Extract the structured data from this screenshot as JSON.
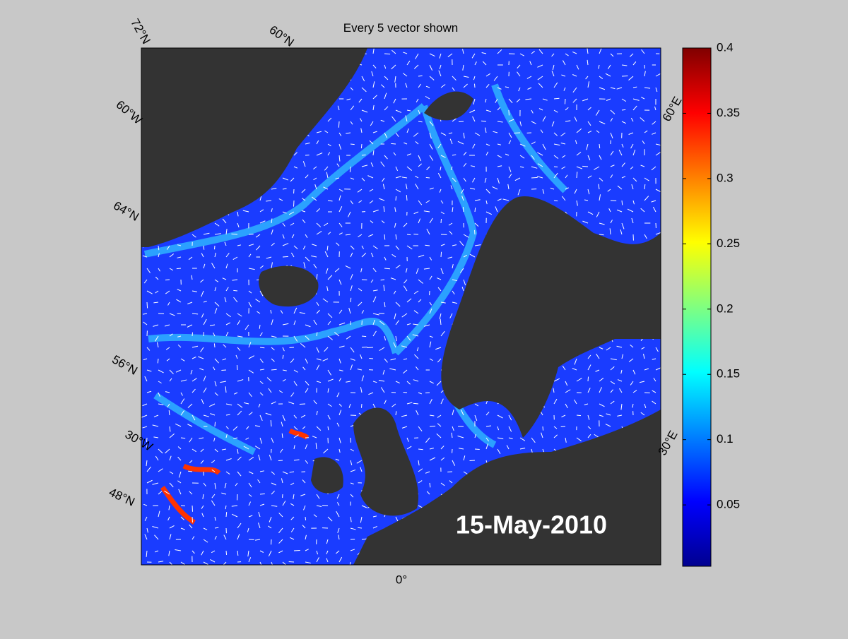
{
  "title": "Every 5 vector shown",
  "date": "15-May-2010",
  "graticule_labels": [
    "72°N",
    "60°N",
    "60°W",
    "64°N",
    "56°N",
    "30°W",
    "48°N",
    "0°",
    "60°E",
    "30°E"
  ],
  "colorbar": {
    "lim": [
      0.003,
      0.4
    ],
    "ticks": [
      0.05,
      0.1,
      0.15,
      0.2,
      0.25,
      0.3,
      0.35,
      0.4
    ],
    "colors": [
      "#00008f",
      "#0000ff",
      "#0080ff",
      "#00ffff",
      "#80ff80",
      "#ffff00",
      "#ff8000",
      "#ff0000",
      "#800000"
    ]
  }
}
